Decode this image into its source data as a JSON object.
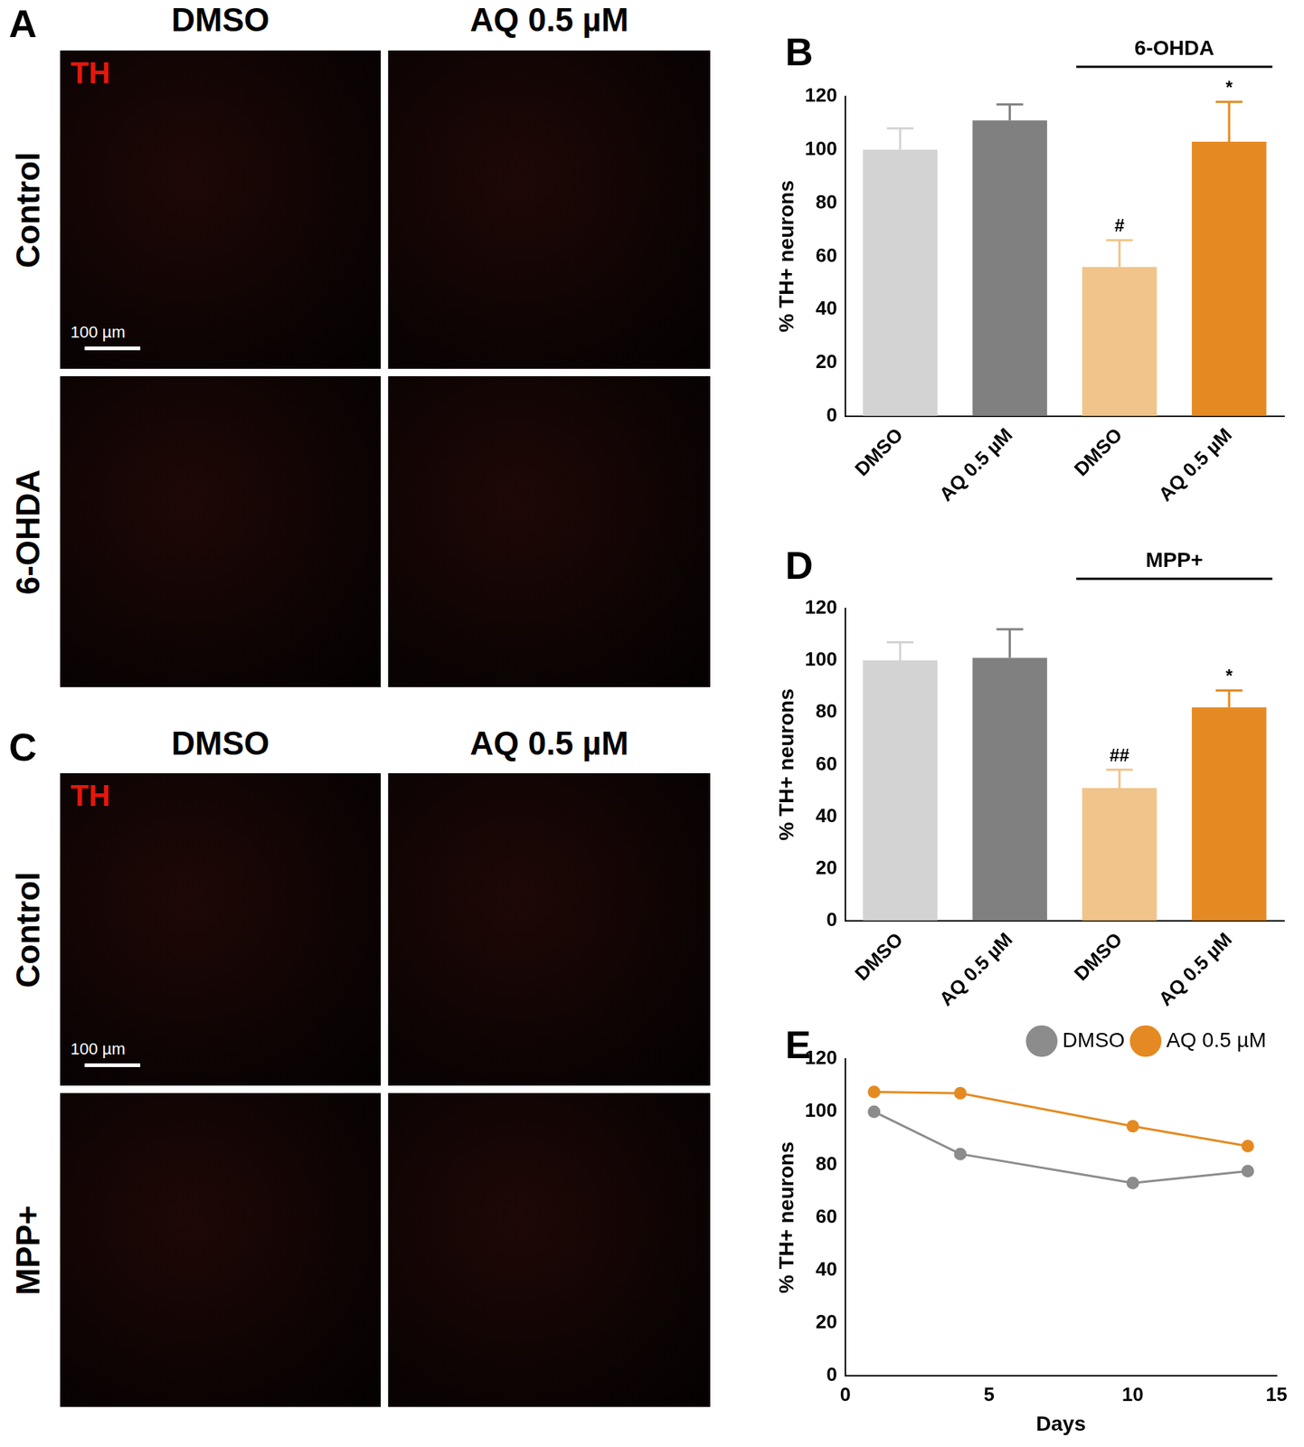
{
  "figure_panels": [
    {
      "letter": "A",
      "columns": [
        "DMSO",
        "AQ 0.5 µM"
      ],
      "rows": [
        "Control",
        "6-OHDA"
      ],
      "stain": "TH",
      "scale_bar": "100 µm"
    },
    {
      "letter": "C",
      "columns": [
        "DMSO",
        "AQ 0.5 µM"
      ],
      "rows": [
        "Control",
        "MPP+"
      ],
      "stain": "TH",
      "scale_bar": "100 µm"
    }
  ],
  "chart_data": [
    {
      "type": "bar",
      "title": "B",
      "annotation": "6-OHDA",
      "categories": [
        "DMSO",
        "AQ 0.5 µM",
        "DMSO",
        "AQ 0.5 µM"
      ],
      "values": [
        100,
        111,
        56,
        103
      ],
      "errors": [
        8,
        6,
        10,
        15
      ],
      "significance": [
        null,
        null,
        "#",
        "*"
      ],
      "colors": [
        "#d3d3d3",
        "#808080",
        "#f0c48a",
        "#e58a22"
      ],
      "y_label": "% TH+ neurons",
      "ylim": [
        0,
        120
      ],
      "yticks": [
        0,
        20,
        40,
        60,
        80,
        100,
        120
      ],
      "grid": false
    },
    {
      "type": "bar",
      "title": "D",
      "annotation": "MPP+",
      "categories": [
        "DMSO",
        "AQ 0.5 µM",
        "DMSO",
        "AQ 0.5 µM"
      ],
      "values": [
        100,
        101,
        51,
        82
      ],
      "errors": [
        7,
        11,
        7,
        6.5
      ],
      "significance": [
        null,
        null,
        "##",
        "*"
      ],
      "colors": [
        "#d3d3d3",
        "#808080",
        "#f0c48a",
        "#e58a22"
      ],
      "y_label": "% TH+ neurons",
      "ylim": [
        0,
        120
      ],
      "yticks": [
        0,
        20,
        40,
        60,
        80,
        100,
        120
      ],
      "grid": false
    },
    {
      "type": "line",
      "title": "E",
      "x": [
        1,
        4,
        10,
        14
      ],
      "series": [
        {
          "name": "DMSO",
          "color": "#8c8c8c",
          "values": [
            100,
            84,
            73,
            77.5
          ],
          "marker": "circle"
        },
        {
          "name": "AQ 0.5 µM",
          "color": "#e58a22",
          "values": [
            107.5,
            107,
            94.5,
            87
          ],
          "marker": "circle"
        }
      ],
      "x_label": "Days",
      "y_label": "% TH+ neurons",
      "xlim": [
        0,
        15
      ],
      "xticks": [
        0,
        5,
        10,
        15
      ],
      "ylim": [
        0,
        120
      ],
      "yticks": [
        0,
        20,
        40,
        60,
        80,
        100,
        120
      ],
      "legend": "upper right",
      "grid": false
    }
  ]
}
